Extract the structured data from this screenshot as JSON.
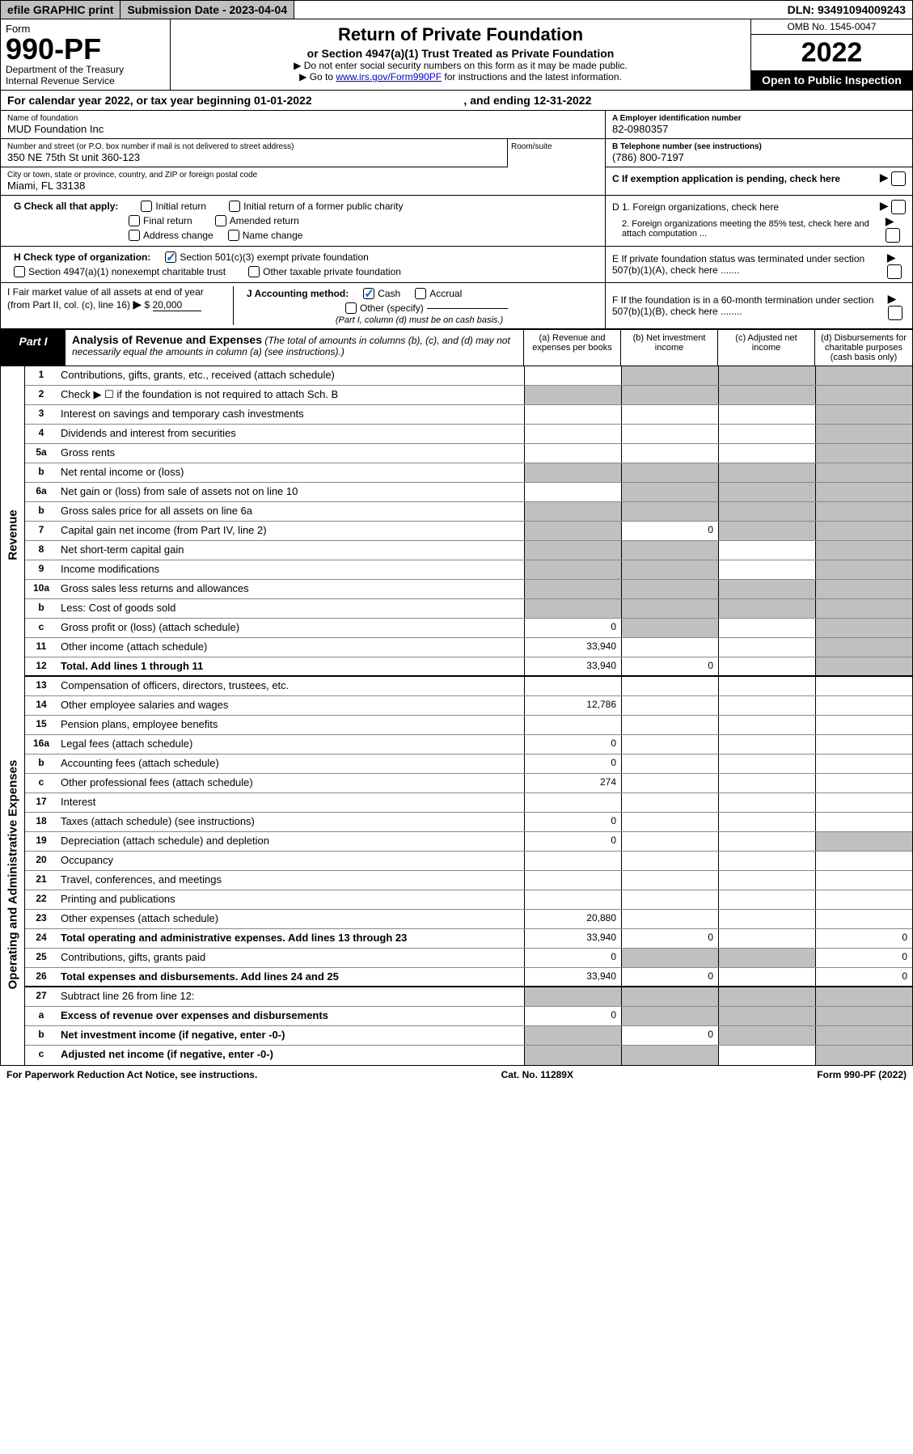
{
  "topbar": {
    "efile": "efile GRAPHIC print",
    "subdate_label": "Submission Date - ",
    "subdate_value": "2023-04-04",
    "dln_label": "DLN: ",
    "dln_value": "93491094009243"
  },
  "header": {
    "form_word": "Form",
    "form_no": "990-PF",
    "dept": "Department of the Treasury",
    "irs": "Internal Revenue Service",
    "title": "Return of Private Foundation",
    "subtitle": "or Section 4947(a)(1) Trust Treated as Private Foundation",
    "note1": "▶ Do not enter social security numbers on this form as it may be made public.",
    "note2_pre": "▶ Go to ",
    "note2_link": "www.irs.gov/Form990PF",
    "note2_post": " for instructions and the latest information.",
    "omb": "OMB No. 1545-0047",
    "year": "2022",
    "open": "Open to Public Inspection"
  },
  "calendar": {
    "text_pre": "For calendar year 2022, or tax year beginning ",
    "begin": "01-01-2022",
    "text_mid": ", and ending ",
    "end": "12-31-2022"
  },
  "entity": {
    "name_label": "Name of foundation",
    "name": "MUD Foundation Inc",
    "addr_label": "Number and street (or P.O. box number if mail is not delivered to street address)",
    "addr": "350 NE 75th St unit 360-123",
    "room_label": "Room/suite",
    "city_label": "City or town, state or province, country, and ZIP or foreign postal code",
    "city": "Miami, FL 33138",
    "ein_label": "A Employer identification number",
    "ein": "82-0980357",
    "phone_label": "B Telephone number (see instructions)",
    "phone": "(786) 800-7197",
    "c_label": "C If exemption application is pending, check here"
  },
  "checks": {
    "g_label": "G Check all that apply:",
    "g1": "Initial return",
    "g2": "Initial return of a former public charity",
    "g3": "Final return",
    "g4": "Amended return",
    "g5": "Address change",
    "g6": "Name change",
    "h_label": "H Check type of organization:",
    "h1": "Section 501(c)(3) exempt private foundation",
    "h2": "Section 4947(a)(1) nonexempt charitable trust",
    "h3": "Other taxable private foundation",
    "d1": "D 1. Foreign organizations, check here",
    "d2": "2. Foreign organizations meeting the 85% test, check here and attach computation ...",
    "e": "E If private foundation status was terminated under section 507(b)(1)(A), check here .......",
    "i_label": "I Fair market value of all assets at end of year (from Part II, col. (c), line 16)",
    "i_value": "20,000",
    "j_label": "J Accounting method:",
    "j1": "Cash",
    "j2": "Accrual",
    "j3": "Other (specify)",
    "j_note": "(Part I, column (d) must be on cash basis.)",
    "f": "F If the foundation is in a 60-month termination under section 507(b)(1)(B), check here ........"
  },
  "part1": {
    "label": "Part I",
    "title": "Analysis of Revenue and Expenses",
    "note": "(The total of amounts in columns (b), (c), and (d) may not necessarily equal the amounts in column (a) (see instructions).)",
    "col_a": "(a) Revenue and expenses per books",
    "col_b": "(b) Net investment income",
    "col_c": "(c) Adjusted net income",
    "col_d": "(d) Disbursements for charitable purposes (cash basis only)"
  },
  "sidelabels": {
    "revenue": "Revenue",
    "expenses": "Operating and Administrative Expenses"
  },
  "rows": [
    {
      "n": "1",
      "d": "Contributions, gifts, grants, etc., received (attach schedule)",
      "a": "",
      "b": "grey",
      "c": "grey",
      "dd": "grey"
    },
    {
      "n": "2",
      "d": "Check ▶ ☐ if the foundation is not required to attach Sch. B",
      "a": "grey",
      "b": "grey",
      "c": "grey",
      "dd": "grey"
    },
    {
      "n": "3",
      "d": "Interest on savings and temporary cash investments",
      "a": "",
      "b": "",
      "c": "",
      "dd": "grey"
    },
    {
      "n": "4",
      "d": "Dividends and interest from securities",
      "a": "",
      "b": "",
      "c": "",
      "dd": "grey"
    },
    {
      "n": "5a",
      "d": "Gross rents",
      "a": "",
      "b": "",
      "c": "",
      "dd": "grey"
    },
    {
      "n": "b",
      "d": "Net rental income or (loss)",
      "a": "grey",
      "b": "grey",
      "c": "grey",
      "dd": "grey"
    },
    {
      "n": "6a",
      "d": "Net gain or (loss) from sale of assets not on line 10",
      "a": "",
      "b": "grey",
      "c": "grey",
      "dd": "grey"
    },
    {
      "n": "b",
      "d": "Gross sales price for all assets on line 6a",
      "a": "grey",
      "b": "grey",
      "c": "grey",
      "dd": "grey"
    },
    {
      "n": "7",
      "d": "Capital gain net income (from Part IV, line 2)",
      "a": "grey",
      "b": "0",
      "c": "grey",
      "dd": "grey"
    },
    {
      "n": "8",
      "d": "Net short-term capital gain",
      "a": "grey",
      "b": "grey",
      "c": "",
      "dd": "grey"
    },
    {
      "n": "9",
      "d": "Income modifications",
      "a": "grey",
      "b": "grey",
      "c": "",
      "dd": "grey"
    },
    {
      "n": "10a",
      "d": "Gross sales less returns and allowances",
      "a": "grey",
      "b": "grey",
      "c": "grey",
      "dd": "grey"
    },
    {
      "n": "b",
      "d": "Less: Cost of goods sold",
      "a": "grey",
      "b": "grey",
      "c": "grey",
      "dd": "grey"
    },
    {
      "n": "c",
      "d": "Gross profit or (loss) (attach schedule)",
      "a": "0",
      "b": "grey",
      "c": "",
      "dd": "grey"
    },
    {
      "n": "11",
      "d": "Other income (attach schedule)",
      "a": "33,940",
      "b": "",
      "c": "",
      "dd": "grey"
    },
    {
      "n": "12",
      "d": "Total. Add lines 1 through 11",
      "bold": true,
      "a": "33,940",
      "b": "0",
      "c": "",
      "dd": "grey"
    },
    {
      "n": "13",
      "d": "Compensation of officers, directors, trustees, etc.",
      "a": "",
      "b": "",
      "c": "",
      "dd": ""
    },
    {
      "n": "14",
      "d": "Other employee salaries and wages",
      "a": "12,786",
      "b": "",
      "c": "",
      "dd": ""
    },
    {
      "n": "15",
      "d": "Pension plans, employee benefits",
      "a": "",
      "b": "",
      "c": "",
      "dd": ""
    },
    {
      "n": "16a",
      "d": "Legal fees (attach schedule)",
      "a": "0",
      "b": "",
      "c": "",
      "dd": ""
    },
    {
      "n": "b",
      "d": "Accounting fees (attach schedule)",
      "a": "0",
      "b": "",
      "c": "",
      "dd": ""
    },
    {
      "n": "c",
      "d": "Other professional fees (attach schedule)",
      "a": "274",
      "b": "",
      "c": "",
      "dd": ""
    },
    {
      "n": "17",
      "d": "Interest",
      "a": "",
      "b": "",
      "c": "",
      "dd": ""
    },
    {
      "n": "18",
      "d": "Taxes (attach schedule) (see instructions)",
      "a": "0",
      "b": "",
      "c": "",
      "dd": ""
    },
    {
      "n": "19",
      "d": "Depreciation (attach schedule) and depletion",
      "a": "0",
      "b": "",
      "c": "",
      "dd": "grey"
    },
    {
      "n": "20",
      "d": "Occupancy",
      "a": "",
      "b": "",
      "c": "",
      "dd": ""
    },
    {
      "n": "21",
      "d": "Travel, conferences, and meetings",
      "a": "",
      "b": "",
      "c": "",
      "dd": ""
    },
    {
      "n": "22",
      "d": "Printing and publications",
      "a": "",
      "b": "",
      "c": "",
      "dd": ""
    },
    {
      "n": "23",
      "d": "Other expenses (attach schedule)",
      "a": "20,880",
      "b": "",
      "c": "",
      "dd": ""
    },
    {
      "n": "24",
      "d": "Total operating and administrative expenses. Add lines 13 through 23",
      "bold": true,
      "a": "33,940",
      "b": "0",
      "c": "",
      "dd": "0"
    },
    {
      "n": "25",
      "d": "Contributions, gifts, grants paid",
      "a": "0",
      "b": "grey",
      "c": "grey",
      "dd": "0"
    },
    {
      "n": "26",
      "d": "Total expenses and disbursements. Add lines 24 and 25",
      "bold": true,
      "a": "33,940",
      "b": "0",
      "c": "",
      "dd": "0"
    },
    {
      "n": "27",
      "d": "Subtract line 26 from line 12:",
      "a": "grey",
      "b": "grey",
      "c": "grey",
      "dd": "grey"
    },
    {
      "n": "a",
      "d": "Excess of revenue over expenses and disbursements",
      "bold": true,
      "a": "0",
      "b": "grey",
      "c": "grey",
      "dd": "grey"
    },
    {
      "n": "b",
      "d": "Net investment income (if negative, enter -0-)",
      "bold": true,
      "a": "grey",
      "b": "0",
      "c": "grey",
      "dd": "grey"
    },
    {
      "n": "c",
      "d": "Adjusted net income (if negative, enter -0-)",
      "bold": true,
      "a": "grey",
      "b": "grey",
      "c": "",
      "dd": "grey"
    }
  ],
  "footer": {
    "left": "For Paperwork Reduction Act Notice, see instructions.",
    "mid": "Cat. No. 11289X",
    "right": "Form 990-PF (2022)"
  },
  "colors": {
    "link": "#0000cc",
    "grey_fill": "#c0c0c0",
    "black": "#000000",
    "check_blue": "#0066cc"
  }
}
